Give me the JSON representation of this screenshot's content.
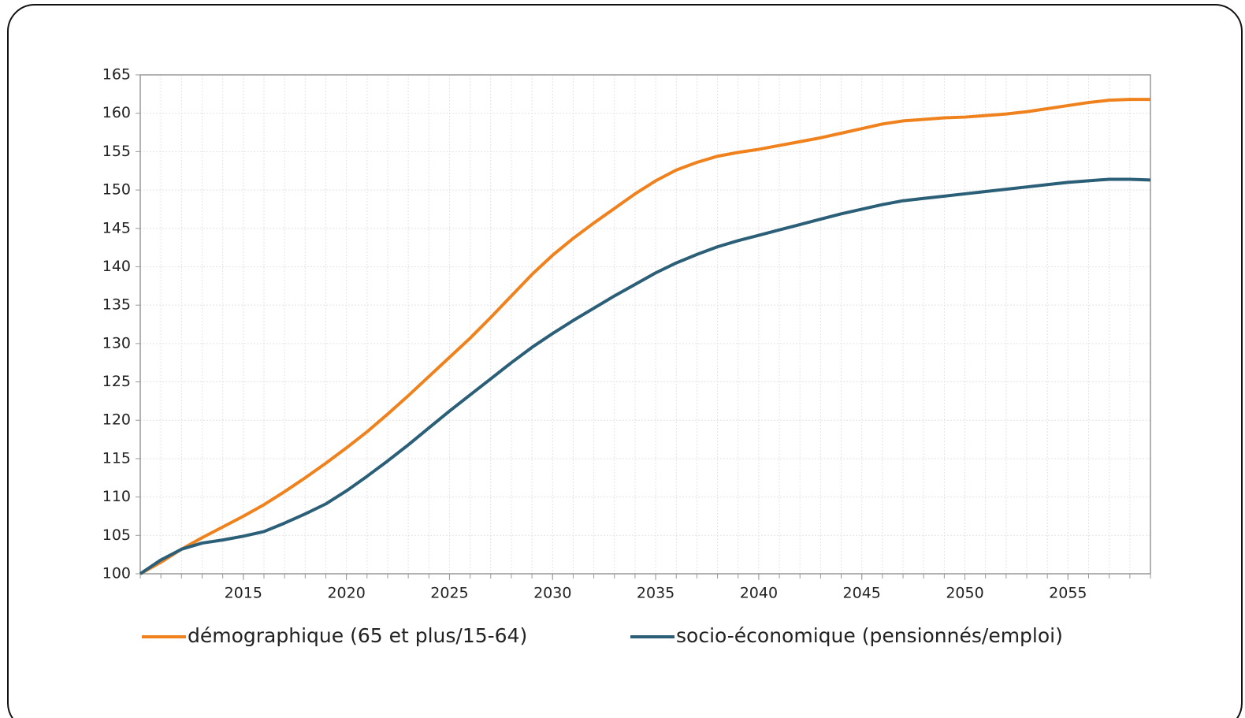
{
  "chart_data": {
    "type": "line",
    "x": [
      2010,
      2011,
      2012,
      2013,
      2014,
      2015,
      2016,
      2017,
      2018,
      2019,
      2020,
      2021,
      2022,
      2023,
      2024,
      2025,
      2026,
      2027,
      2028,
      2029,
      2030,
      2031,
      2032,
      2033,
      2034,
      2035,
      2036,
      2037,
      2038,
      2039,
      2040,
      2041,
      2042,
      2043,
      2044,
      2045,
      2046,
      2047,
      2048,
      2049,
      2050,
      2051,
      2052,
      2053,
      2054,
      2055,
      2056,
      2057,
      2058,
      2059
    ],
    "series": [
      {
        "name": "démographique (65 et plus/15-64)",
        "color": "#f0821e",
        "values": [
          100,
          101.5,
          103.2,
          104.7,
          106.1,
          107.5,
          109,
          110.7,
          112.5,
          114.4,
          116.4,
          118.5,
          120.8,
          123.2,
          125.7,
          128.2,
          130.7,
          133.4,
          136.2,
          139,
          141.5,
          143.7,
          145.7,
          147.6,
          149.5,
          151.2,
          152.6,
          153.6,
          154.4,
          154.9,
          155.3,
          155.8,
          156.3,
          156.8,
          157.4,
          158,
          158.6,
          159,
          159.2,
          159.4,
          159.5,
          159.7,
          159.9,
          160.2,
          160.6,
          161,
          161.4,
          161.7,
          161.8,
          161.8
        ]
      },
      {
        "name": "socio-économique (pensionnés/emploi)",
        "color": "#2b5f78",
        "values": [
          100,
          101.8,
          103.2,
          104,
          104.4,
          104.9,
          105.5,
          106.6,
          107.8,
          109.1,
          110.8,
          112.7,
          114.7,
          116.8,
          119,
          121.2,
          123.3,
          125.4,
          127.5,
          129.5,
          131.3,
          133,
          134.6,
          136.2,
          137.7,
          139.2,
          140.5,
          141.6,
          142.6,
          143.4,
          144.1,
          144.8,
          145.5,
          146.2,
          146.9,
          147.5,
          148.1,
          148.6,
          148.9,
          149.2,
          149.5,
          149.8,
          150.1,
          150.4,
          150.7,
          151,
          151.2,
          151.4,
          151.4,
          151.3
        ]
      }
    ],
    "xlim": [
      2010,
      2059
    ],
    "xticks": [
      2015,
      2020,
      2025,
      2030,
      2035,
      2040,
      2045,
      2050,
      2055
    ],
    "ylim": [
      100,
      165
    ],
    "yticks": [
      100,
      105,
      110,
      115,
      120,
      125,
      130,
      135,
      140,
      145,
      150,
      155,
      160,
      165
    ],
    "grid": true,
    "legend": "bottom"
  }
}
